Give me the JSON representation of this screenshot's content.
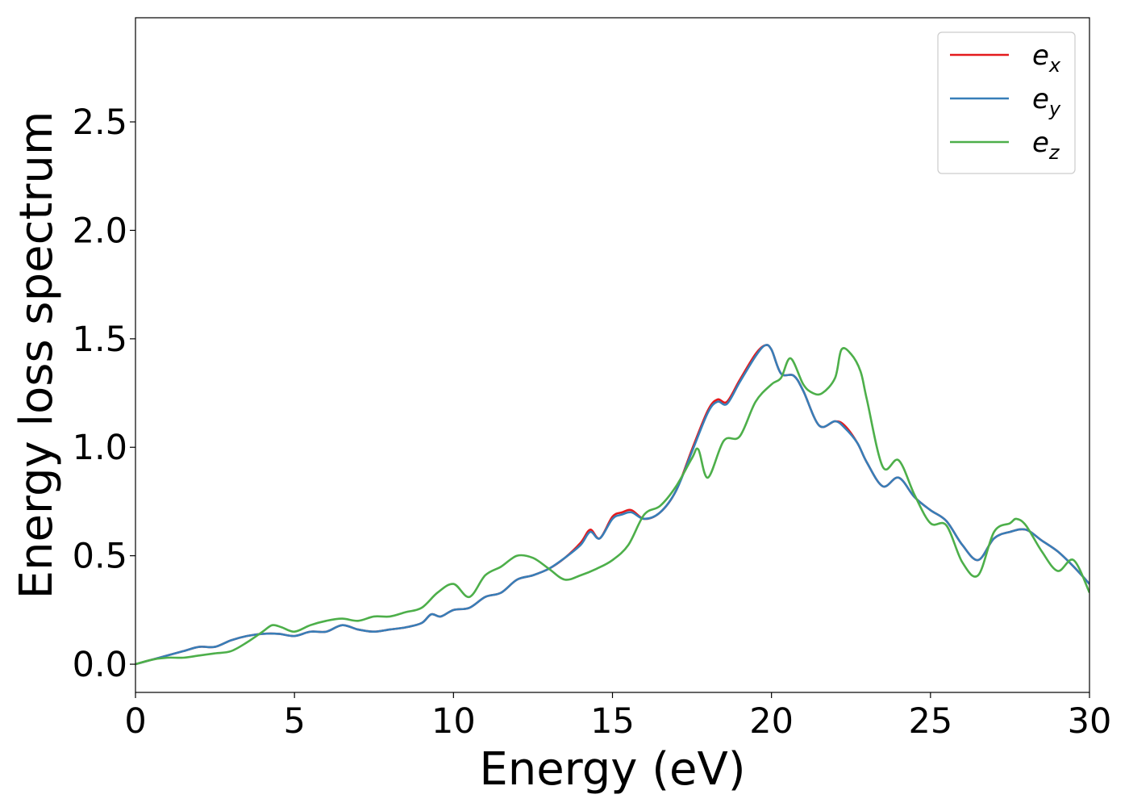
{
  "chart_data": {
    "type": "line",
    "title": "",
    "xlabel": "Energy (eV)",
    "ylabel": "Energy loss spectrum",
    "xlim": [
      0,
      30
    ],
    "ylim": [
      -0.13,
      2.98
    ],
    "xticks": [
      0,
      5,
      10,
      15,
      20,
      25,
      30
    ],
    "xtick_labels": [
      "0",
      "5",
      "10",
      "15",
      "20",
      "25",
      "30"
    ],
    "yticks": [
      0.0,
      0.5,
      1.0,
      1.5,
      2.0,
      2.5
    ],
    "ytick_labels": [
      "0.0",
      "0.5",
      "1.0",
      "1.5",
      "2.0",
      "2.5"
    ],
    "grid": false,
    "legend_position": "top-right",
    "series": [
      {
        "name": "e_x",
        "legend_base": "e",
        "legend_sub": "x",
        "color": "#e41a1c",
        "x": [
          0,
          0.5,
          1,
          1.5,
          2,
          2.5,
          3,
          3.5,
          4,
          4.5,
          5,
          5.5,
          6,
          6.5,
          7,
          7.5,
          8,
          8.5,
          9,
          9.3,
          9.6,
          10,
          10.5,
          11,
          11.5,
          12,
          12.5,
          13,
          13.5,
          14,
          14.3,
          14.6,
          15,
          15.3,
          15.6,
          16,
          16.5,
          17,
          17.5,
          18,
          18.3,
          18.6,
          19,
          19.5,
          19.8,
          20,
          20.3,
          20.7,
          21,
          21.5,
          22,
          22.3,
          22.7,
          23,
          23.5,
          24,
          24.5,
          25,
          25.5,
          26,
          26.5,
          27,
          27.5,
          28,
          28.5,
          29,
          29.5,
          30
        ],
        "y": [
          0.0,
          0.02,
          0.04,
          0.06,
          0.08,
          0.08,
          0.11,
          0.13,
          0.14,
          0.14,
          0.13,
          0.15,
          0.15,
          0.18,
          0.16,
          0.15,
          0.16,
          0.17,
          0.19,
          0.23,
          0.22,
          0.25,
          0.26,
          0.31,
          0.33,
          0.39,
          0.41,
          0.44,
          0.49,
          0.56,
          0.62,
          0.58,
          0.68,
          0.7,
          0.71,
          0.67,
          0.7,
          0.8,
          0.99,
          1.17,
          1.22,
          1.21,
          1.31,
          1.43,
          1.47,
          1.45,
          1.34,
          1.33,
          1.26,
          1.1,
          1.12,
          1.1,
          1.02,
          0.93,
          0.82,
          0.86,
          0.77,
          0.71,
          0.66,
          0.55,
          0.48,
          0.58,
          0.61,
          0.62,
          0.57,
          0.52,
          0.45,
          0.37
        ]
      },
      {
        "name": "e_y",
        "legend_base": "e",
        "legend_sub": "y",
        "color": "#377eb8",
        "x": [
          0,
          0.5,
          1,
          1.5,
          2,
          2.5,
          3,
          3.5,
          4,
          4.5,
          5,
          5.5,
          6,
          6.5,
          7,
          7.5,
          8,
          8.5,
          9,
          9.3,
          9.6,
          10,
          10.5,
          11,
          11.5,
          12,
          12.5,
          13,
          13.5,
          14,
          14.3,
          14.6,
          15,
          15.3,
          15.6,
          16,
          16.5,
          17,
          17.5,
          18,
          18.3,
          18.6,
          19,
          19.5,
          19.8,
          20,
          20.3,
          20.7,
          21,
          21.5,
          22,
          22.3,
          22.7,
          23,
          23.5,
          24,
          24.5,
          25,
          25.5,
          26,
          26.5,
          27,
          27.5,
          28,
          28.5,
          29,
          29.5,
          30
        ],
        "y": [
          0.0,
          0.02,
          0.04,
          0.06,
          0.08,
          0.08,
          0.11,
          0.13,
          0.14,
          0.14,
          0.13,
          0.15,
          0.15,
          0.18,
          0.16,
          0.15,
          0.16,
          0.17,
          0.19,
          0.23,
          0.22,
          0.25,
          0.26,
          0.31,
          0.33,
          0.39,
          0.41,
          0.44,
          0.49,
          0.55,
          0.61,
          0.58,
          0.67,
          0.69,
          0.7,
          0.67,
          0.7,
          0.8,
          0.98,
          1.16,
          1.21,
          1.2,
          1.3,
          1.42,
          1.47,
          1.45,
          1.34,
          1.33,
          1.26,
          1.1,
          1.12,
          1.09,
          1.02,
          0.93,
          0.82,
          0.86,
          0.77,
          0.71,
          0.66,
          0.55,
          0.48,
          0.58,
          0.61,
          0.62,
          0.57,
          0.52,
          0.45,
          0.37
        ]
      },
      {
        "name": "e_z",
        "legend_base": "e",
        "legend_sub": "z",
        "color": "#4daf4a",
        "x": [
          0,
          0.5,
          1,
          1.5,
          2,
          2.5,
          3,
          3.5,
          4,
          4.3,
          4.6,
          5,
          5.5,
          6,
          6.5,
          7,
          7.5,
          8,
          8.5,
          9,
          9.5,
          10,
          10.5,
          11,
          11.5,
          12,
          12.5,
          13,
          13.5,
          14,
          14.5,
          15,
          15.5,
          16,
          16.5,
          17,
          17.5,
          17.7,
          18,
          18.5,
          19,
          19.5,
          20,
          20.3,
          20.6,
          21,
          21.3,
          21.6,
          22,
          22.2,
          22.5,
          22.8,
          23,
          23.5,
          24,
          24.5,
          25,
          25.5,
          26,
          26.5,
          27,
          27.5,
          27.7,
          28,
          28.5,
          29,
          29.5,
          30
        ],
        "y": [
          0.0,
          0.02,
          0.03,
          0.03,
          0.04,
          0.05,
          0.06,
          0.1,
          0.15,
          0.18,
          0.17,
          0.15,
          0.18,
          0.2,
          0.21,
          0.2,
          0.22,
          0.22,
          0.24,
          0.26,
          0.33,
          0.37,
          0.31,
          0.41,
          0.45,
          0.5,
          0.49,
          0.44,
          0.39,
          0.41,
          0.44,
          0.48,
          0.55,
          0.69,
          0.73,
          0.82,
          0.95,
          0.99,
          0.86,
          1.03,
          1.05,
          1.21,
          1.29,
          1.32,
          1.41,
          1.29,
          1.25,
          1.25,
          1.32,
          1.45,
          1.43,
          1.35,
          1.22,
          0.91,
          0.94,
          0.78,
          0.65,
          0.64,
          0.47,
          0.41,
          0.61,
          0.65,
          0.67,
          0.64,
          0.52,
          0.43,
          0.48,
          0.33
        ]
      }
    ]
  }
}
